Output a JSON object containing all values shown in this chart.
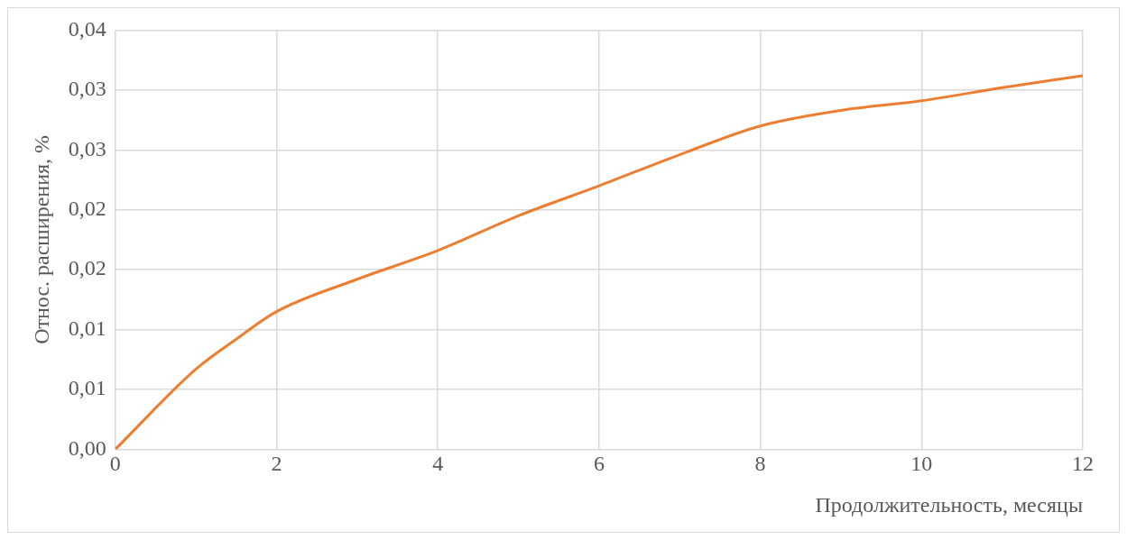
{
  "chart_data": {
    "type": "line",
    "xlabel": "Продолжительность, месяцы",
    "ylabel": "Относ. расширения, %",
    "x": [
      0,
      1,
      1.5,
      2,
      3,
      4,
      5,
      6,
      7,
      8,
      9,
      10,
      11,
      12
    ],
    "series": [
      {
        "color": "#ed7d31",
        "values": [
          0,
          0.0067,
          0.0092,
          0.0115,
          0.0142,
          0.0166,
          0.0195,
          0.022,
          0.0246,
          0.027,
          0.0283,
          0.0291,
          0.0302,
          0.0312
        ]
      }
    ],
    "xlim": [
      0,
      12
    ],
    "xticks": [
      0,
      2,
      4,
      6,
      8,
      10,
      12
    ],
    "ylim": [
      0,
      0.035
    ],
    "yticks": [
      {
        "value": 0,
        "label": "0,00"
      },
      {
        "value": 0.005,
        "label": "0,01"
      },
      {
        "value": 0.01,
        "label": "0,01"
      },
      {
        "value": 0.015,
        "label": "0,02"
      },
      {
        "value": 0.02,
        "label": "0,02"
      },
      {
        "value": 0.025,
        "label": "0,03"
      },
      {
        "value": 0.03,
        "label": "0,03"
      },
      {
        "value": 0.035,
        "label": "0,04"
      }
    ],
    "grid": true,
    "legend": false,
    "marker": "none",
    "line_style": "solid"
  }
}
